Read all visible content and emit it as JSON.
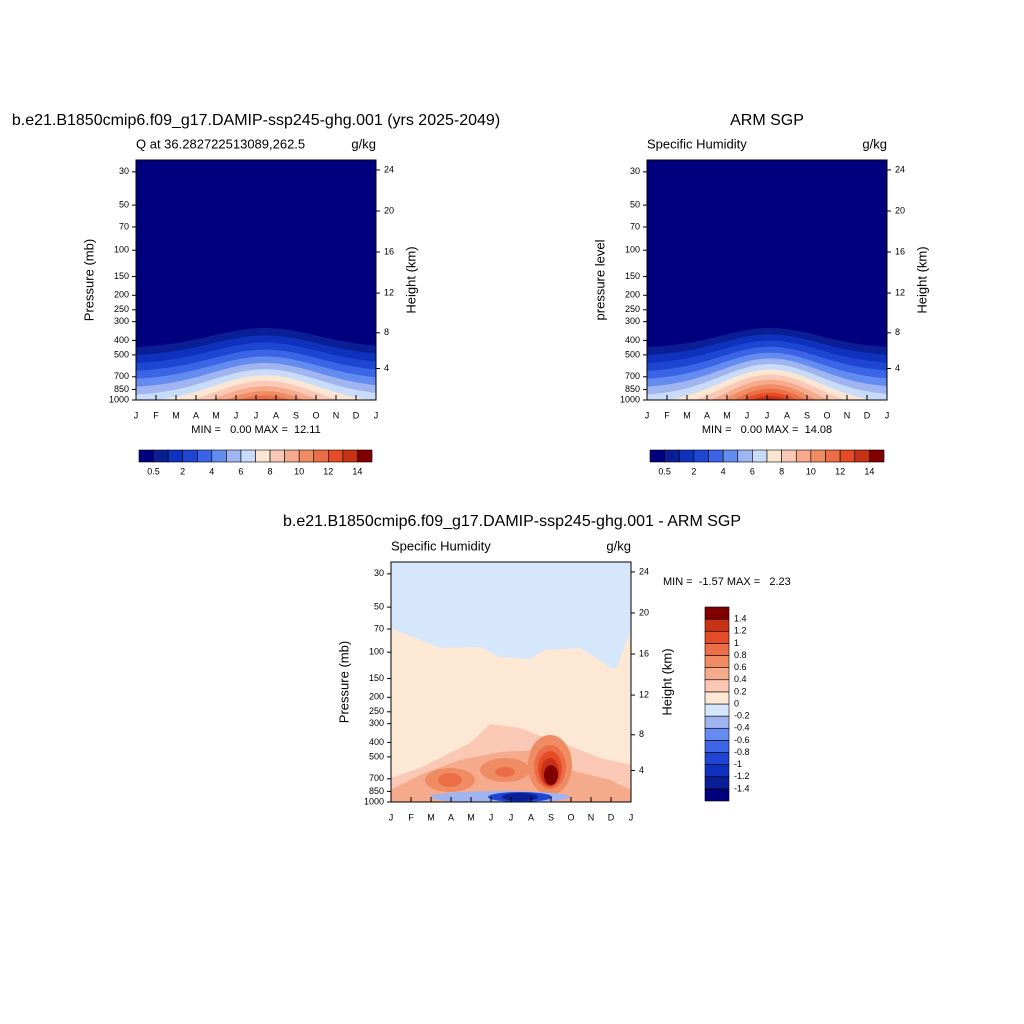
{
  "chart_data": [
    {
      "type": "contour",
      "title": "b.e21.B1850cmip6.f09_g17.DAMIP-ssp245-ghg.001 (yrs 2025-2049)",
      "left_string": "Q at 36.282722513089,262.5",
      "right_string": "g/kg",
      "ylabel": "Pressure (mb)",
      "y2label": "Height (km)",
      "ylog": true,
      "ylim": [
        1000,
        25
      ],
      "yticks": [
        30,
        50,
        70,
        100,
        150,
        200,
        250,
        300,
        400,
        500,
        700,
        850,
        1000
      ],
      "y2ticks": [
        4,
        8,
        12,
        16,
        20,
        24
      ],
      "categories": [
        "J",
        "F",
        "M",
        "A",
        "M",
        "J",
        "J",
        "A",
        "S",
        "O",
        "N",
        "D",
        "J"
      ],
      "min_max_label": "MIN =   0.00 MAX =  12.11",
      "colorbar": {
        "orientation": "horizontal",
        "levels": [
          0.5,
          1,
          2,
          3,
          4,
          5,
          6,
          7,
          8,
          9,
          10,
          11,
          12,
          13,
          14
        ],
        "colors": [
          "#00007f",
          "#0a1e96",
          "#0f32be",
          "#1e46d2",
          "#3c64e6",
          "#648cf0",
          "#a0b4f0",
          "#c8dcfa",
          "#fae6d2",
          "#fac8b4",
          "#f5aa8c",
          "#f08c64",
          "#eb6e46",
          "#e64b28",
          "#c83214",
          "#800000"
        ]
      }
    },
    {
      "type": "contour",
      "title": "ARM SGP",
      "left_string": "Specific Humidity",
      "right_string": "g/kg",
      "ylabel": "pressure level",
      "y2label": "Height (km)",
      "ylog": true,
      "ylim": [
        1000,
        25
      ],
      "yticks": [
        30,
        50,
        70,
        100,
        150,
        200,
        250,
        300,
        400,
        500,
        700,
        850,
        1000
      ],
      "y2ticks": [
        4,
        8,
        12,
        16,
        20,
        24
      ],
      "categories": [
        "J",
        "F",
        "M",
        "A",
        "M",
        "J",
        "J",
        "A",
        "S",
        "O",
        "N",
        "D",
        "J"
      ],
      "min_max_label": "MIN =   0.00 MAX =  14.08",
      "colorbar": {
        "orientation": "horizontal",
        "levels": [
          0.5,
          1,
          2,
          3,
          4,
          5,
          6,
          7,
          8,
          9,
          10,
          11,
          12,
          13,
          14
        ],
        "colors": [
          "#00007f",
          "#0a1e96",
          "#0f32be",
          "#1e46d2",
          "#3c64e6",
          "#648cf0",
          "#a0b4f0",
          "#c8dcfa",
          "#fae6d2",
          "#fac8b4",
          "#f5aa8c",
          "#f08c64",
          "#eb6e46",
          "#e64b28",
          "#c83214",
          "#800000"
        ]
      }
    },
    {
      "type": "contour",
      "title": "b.e21.B1850cmip6.f09_g17.DAMIP-ssp245-ghg.001 - ARM SGP",
      "left_string": "Specific Humidity",
      "right_string": "g/kg",
      "ylabel": "Pressure (mb)",
      "y2label": "Height (km)",
      "ylog": true,
      "ylim": [
        1000,
        25
      ],
      "yticks": [
        30,
        50,
        70,
        100,
        150,
        200,
        250,
        300,
        400,
        500,
        700,
        850,
        1000
      ],
      "y2ticks": [
        4,
        8,
        12,
        16,
        20,
        24
      ],
      "categories": [
        "J",
        "F",
        "M",
        "A",
        "M",
        "J",
        "J",
        "A",
        "S",
        "O",
        "N",
        "D",
        "J"
      ],
      "min_max_label": "MIN =  -1.57 MAX =   2.23",
      "colorbar": {
        "orientation": "vertical",
        "levels": [
          -1.4,
          -1.2,
          -1,
          -0.8,
          -0.6,
          -0.4,
          -0.2,
          0,
          0.2,
          0.4,
          0.6,
          0.8,
          1,
          1.2,
          1.4
        ],
        "colors": [
          "#00007f",
          "#0a1e96",
          "#0f32be",
          "#1e46d2",
          "#3c64e6",
          "#648cf0",
          "#a0b4f0",
          "#d6e7fb",
          "#fde8d5",
          "#fac8b4",
          "#f5aa8c",
          "#f08c64",
          "#eb6e46",
          "#e64b28",
          "#c83214",
          "#800000"
        ]
      }
    }
  ]
}
